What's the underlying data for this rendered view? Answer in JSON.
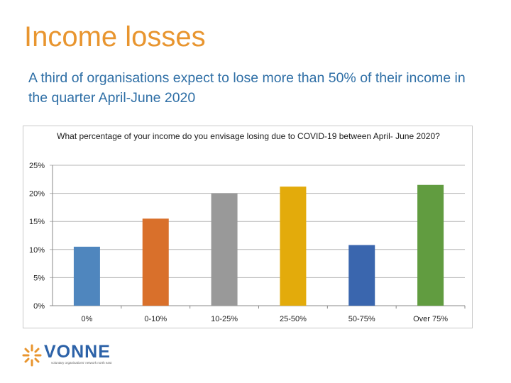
{
  "slide": {
    "title": "Income losses",
    "subtitle": "A third of organisations expect to lose more than 50% of their income in the quarter April-June 2020"
  },
  "chart_data": {
    "type": "bar",
    "title": "What percentage of your income do you envisage losing due to COVID-19 between April- June 2020?",
    "categories": [
      "0%",
      "0-10%",
      "10-25%",
      "25-50%",
      "50-75%",
      "Over 75%"
    ],
    "values": [
      10.5,
      15.5,
      20.0,
      21.2,
      10.8,
      21.5
    ],
    "colors": [
      "#4f86be",
      "#d9702b",
      "#999999",
      "#e3ab0b",
      "#3a66ae",
      "#619c40"
    ],
    "ylim": [
      0,
      25
    ],
    "yticks": [
      0,
      5,
      10,
      15,
      20,
      25
    ],
    "ytick_labels": [
      "0%",
      "5%",
      "10%",
      "15%",
      "20%",
      "25%"
    ],
    "grid": true,
    "legend": "none"
  },
  "logo": {
    "name": "VONNE",
    "tagline": "voluntary organisations' network north east",
    "colors": {
      "name": "#2c62a8",
      "burst": "#e8952f"
    }
  }
}
